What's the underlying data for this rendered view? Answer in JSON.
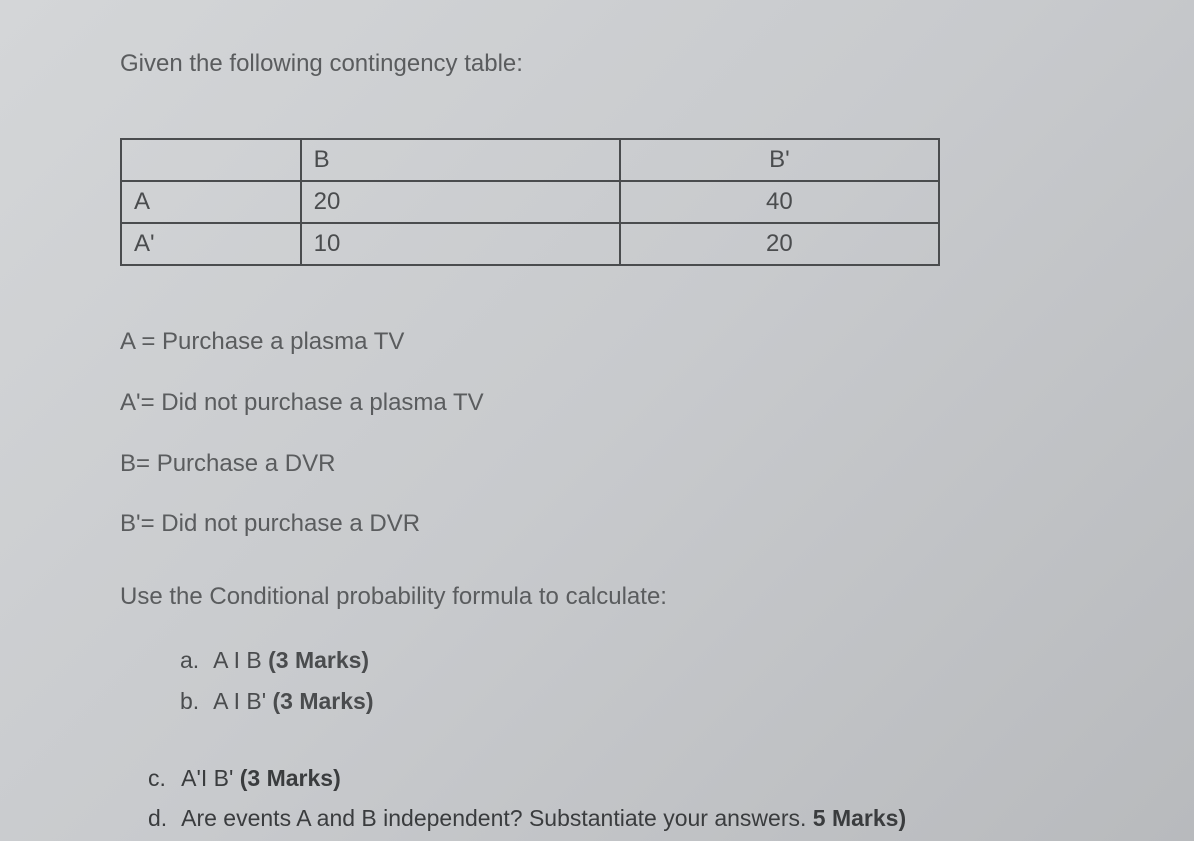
{
  "intro": "Given the following contingency table:",
  "table": {
    "headers": [
      "",
      "B",
      "B'"
    ],
    "rows": [
      [
        "A",
        "20",
        "40"
      ],
      [
        "A'",
        "10",
        "20"
      ]
    ]
  },
  "definitions": [
    "A = Purchase a plasma TV",
    "A'= Did not purchase a plasma TV",
    "B= Purchase a DVR",
    "B'= Did not purchase a DVR"
  ],
  "instruction": "Use the Conditional probability formula to calculate:",
  "questions_top": [
    {
      "letter": "a.",
      "text": "A I B ",
      "marks": "(3 Marks)"
    },
    {
      "letter": "b.",
      "text": "A I B' ",
      "marks": "(3 Marks)"
    }
  ],
  "questions_bottom": [
    {
      "letter": "c.",
      "text": "A'I B' ",
      "marks": "(3 Marks)"
    },
    {
      "letter": "d.",
      "text": "Are events A and B independent? Substantiate your answers. ",
      "marks": "5 Marks)"
    }
  ]
}
